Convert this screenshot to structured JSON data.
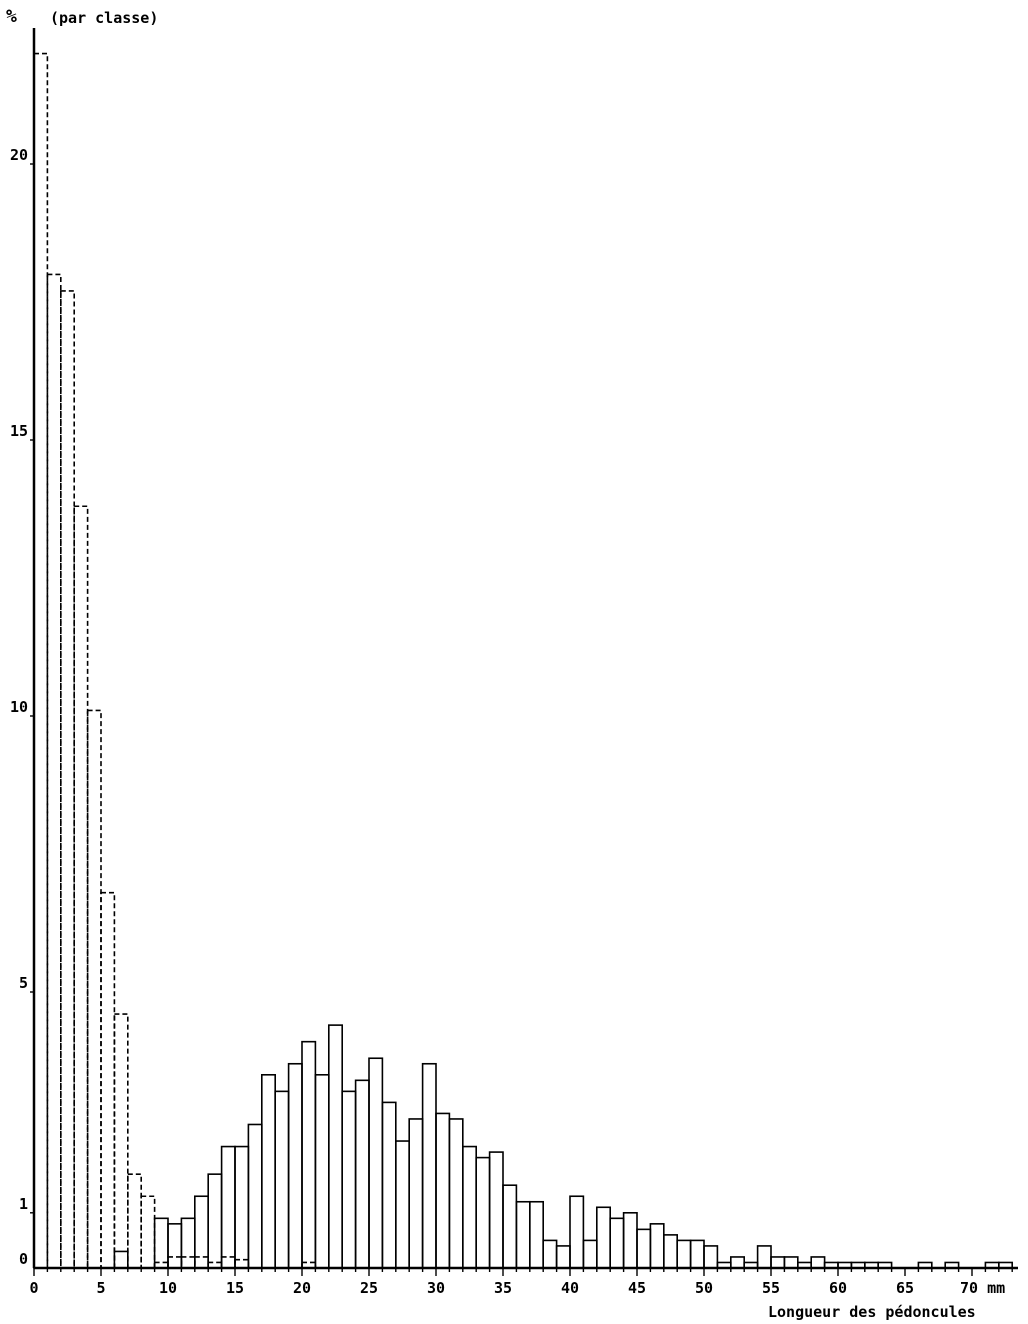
{
  "chart_data": {
    "type": "bar",
    "title": "",
    "ylabel": "%",
    "ylabel_note": "(par classe)",
    "xlabel": "Longueur des pédoncules",
    "x_unit": "mm",
    "xlim": [
      0,
      73
    ],
    "ylim": [
      0,
      22
    ],
    "x_ticks": [
      0,
      5,
      10,
      15,
      20,
      25,
      30,
      35,
      40,
      45,
      50,
      55,
      60,
      65,
      70
    ],
    "x_tick_labels": [
      "0",
      "5",
      "10",
      "15",
      "20",
      "25",
      "30",
      "35",
      "40",
      "45",
      "50",
      "55",
      "60",
      "65",
      "70 mm"
    ],
    "y_ticks": [
      0,
      1,
      5,
      10,
      15,
      20
    ],
    "y_tick_labels": [
      "0",
      "1",
      "5",
      "10",
      "15",
      "20"
    ],
    "grid": false,
    "legend": "none",
    "bin_width": 1,
    "series": [
      {
        "style": "dashed",
        "bins": [
          0,
          1,
          2,
          3,
          4,
          5,
          6,
          7,
          8,
          9,
          10,
          11,
          12,
          13,
          14,
          15,
          16,
          17,
          18,
          19,
          20,
          21,
          22
        ],
        "values": [
          22.0,
          18.0,
          17.7,
          13.8,
          10.1,
          6.8,
          4.6,
          1.7,
          1.3,
          0.1,
          0.2,
          0.2,
          0.2,
          0.1,
          0.2,
          0.15,
          0.0,
          0.0,
          0.0,
          0.0,
          0.1,
          0.0,
          0.0
        ]
      },
      {
        "style": "solid",
        "bins": [
          6,
          9,
          10,
          11,
          12,
          13,
          14,
          15,
          16,
          17,
          18,
          19,
          20,
          21,
          22,
          23,
          24,
          25,
          26,
          27,
          28,
          29,
          30,
          31,
          32,
          33,
          34,
          35,
          36,
          37,
          38,
          39,
          40,
          41,
          42,
          43,
          44,
          45,
          46,
          47,
          48,
          49,
          50,
          51,
          52,
          53,
          54,
          55,
          56,
          57,
          58,
          59,
          60,
          61,
          62,
          63,
          66,
          68,
          71,
          72
        ],
        "values": [
          0.3,
          0.9,
          0.8,
          0.9,
          1.3,
          1.7,
          2.2,
          2.2,
          2.6,
          3.5,
          3.2,
          3.7,
          4.1,
          3.5,
          4.4,
          3.2,
          3.4,
          3.8,
          3.0,
          2.3,
          2.7,
          3.7,
          2.8,
          2.7,
          2.2,
          2.0,
          2.1,
          1.5,
          1.2,
          1.2,
          0.5,
          0.4,
          1.3,
          0.5,
          1.1,
          0.9,
          1.0,
          0.7,
          0.8,
          0.6,
          0.5,
          0.5,
          0.4,
          0.1,
          0.2,
          0.1,
          0.4,
          0.2,
          0.2,
          0.1,
          0.2,
          0.1,
          0.1,
          0.1,
          0.1,
          0.1,
          0.1,
          0.1,
          0.1,
          0.1
        ]
      }
    ]
  }
}
